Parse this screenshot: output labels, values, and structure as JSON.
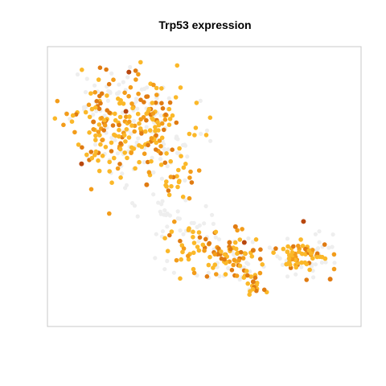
{
  "chart_data": {
    "type": "scatter",
    "title": "Trp53 expression",
    "xlabel": "",
    "ylabel": "",
    "xlim": [
      0,
      100
    ],
    "ylim": [
      0,
      100
    ],
    "grid": false,
    "axes_visible": false,
    "legend": "none",
    "colors": {
      "background_cells": "#eeeeee",
      "low_expression": "#fbb829",
      "mid_expression": "#f39c1a",
      "high_expression": "#e07b12",
      "very_high_expression": "#b8470f"
    },
    "clusters": [
      {
        "role": "background",
        "regions": [
          {
            "cx": 30,
            "cy": 70,
            "rx": 22,
            "ry": 19,
            "n": 90
          },
          {
            "cx": 20,
            "cy": 85,
            "rx": 15,
            "ry": 9,
            "n": 35
          },
          {
            "cx": 38,
            "cy": 38,
            "rx": 12,
            "ry": 14,
            "n": 40
          },
          {
            "cx": 62,
            "cy": 22,
            "rx": 20,
            "ry": 12,
            "n": 50
          },
          {
            "cx": 87,
            "cy": 24,
            "rx": 10,
            "ry": 9,
            "n": 25
          }
        ]
      },
      {
        "role": "expressing",
        "regions": [
          {
            "cx": 26,
            "cy": 73,
            "rx": 22,
            "ry": 20,
            "n": 200
          },
          {
            "cx": 14,
            "cy": 70,
            "rx": 6,
            "ry": 12,
            "n": 25
          },
          {
            "cx": 40,
            "cy": 52,
            "rx": 7,
            "ry": 8,
            "n": 20
          },
          {
            "cx": 46,
            "cy": 26,
            "rx": 9,
            "ry": 11,
            "n": 35
          },
          {
            "cx": 60,
            "cy": 24,
            "rx": 10,
            "ry": 8,
            "n": 60
          },
          {
            "cx": 83,
            "cy": 24,
            "rx": 11,
            "ry": 7,
            "n": 60
          },
          {
            "cx": 66,
            "cy": 13,
            "rx": 4,
            "ry": 6,
            "n": 18
          }
        ]
      }
    ],
    "highlights": [
      {
        "x": 24,
        "y": 94,
        "level": "very_high_expression"
      },
      {
        "x": 23,
        "y": 79,
        "level": "very_high_expression"
      },
      {
        "x": 8,
        "y": 59,
        "level": "very_high_expression"
      },
      {
        "x": 30,
        "y": 51,
        "level": "high_expression"
      },
      {
        "x": 12,
        "y": 75,
        "level": "high_expression"
      },
      {
        "x": 58,
        "y": 29,
        "level": "high_expression"
      },
      {
        "x": 63,
        "y": 29,
        "level": "very_high_expression"
      },
      {
        "x": 66,
        "y": 26,
        "level": "high_expression"
      },
      {
        "x": 66,
        "y": 14,
        "level": "high_expression"
      },
      {
        "x": 83,
        "y": 37,
        "level": "very_high_expression"
      },
      {
        "x": 92,
        "y": 15,
        "level": "high_expression"
      },
      {
        "x": 60,
        "y": 35,
        "level": "high_expression"
      }
    ]
  }
}
